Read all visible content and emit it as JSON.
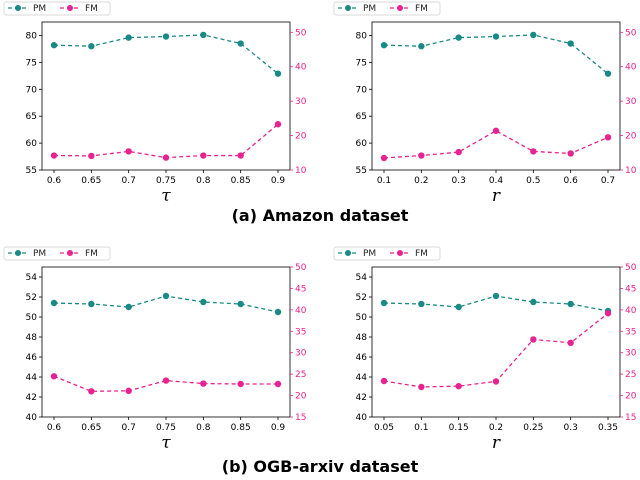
{
  "colors": {
    "pm": "#1a8a85",
    "fm": "#e8238f",
    "axis": "#000000"
  },
  "captions": [
    "(a) Amazon dataset",
    "(b) OGB-arxiv dataset"
  ],
  "chart_data": [
    {
      "type": "line",
      "xlabel": "τ",
      "categories": [
        "0.6",
        "0.65",
        "0.7",
        "0.75",
        "0.8",
        "0.85",
        "0.9"
      ],
      "series": [
        {
          "name": "PM",
          "axis": "left",
          "values": [
            78.2,
            78.0,
            79.6,
            79.8,
            80.1,
            78.5,
            72.9
          ]
        },
        {
          "name": "FM",
          "axis": "right",
          "values": [
            14.2,
            14.1,
            15.4,
            13.6,
            14.2,
            14.2,
            23.3
          ]
        }
      ],
      "ylim_left": [
        55,
        82.5
      ],
      "yticks_left": [
        55,
        60,
        65,
        70,
        75,
        80
      ],
      "ylim_right": [
        10,
        53
      ],
      "yticks_right": [
        10,
        20,
        30,
        40,
        50
      ]
    },
    {
      "type": "line",
      "xlabel": "r",
      "categories": [
        "0.1",
        "0.2",
        "0.3",
        "0.4",
        "0.5",
        "0.6",
        "0.7"
      ],
      "series": [
        {
          "name": "PM",
          "axis": "left",
          "values": [
            78.2,
            78.0,
            79.6,
            79.8,
            80.1,
            78.5,
            72.9
          ]
        },
        {
          "name": "FM",
          "axis": "right",
          "values": [
            13.5,
            14.2,
            15.2,
            21.4,
            15.4,
            14.8,
            19.5
          ]
        }
      ],
      "ylim_left": [
        55,
        82.5
      ],
      "yticks_left": [
        55,
        60,
        65,
        70,
        75,
        80
      ],
      "ylim_right": [
        10,
        53
      ],
      "yticks_right": [
        10,
        20,
        30,
        40,
        50
      ]
    },
    {
      "type": "line",
      "xlabel": "τ",
      "categories": [
        "0.6",
        "0.65",
        "0.7",
        "0.75",
        "0.8",
        "0.85",
        "0.9"
      ],
      "series": [
        {
          "name": "PM",
          "axis": "left",
          "values": [
            51.4,
            51.3,
            51.0,
            52.1,
            51.5,
            51.3,
            50.5
          ]
        },
        {
          "name": "FM",
          "axis": "right",
          "values": [
            24.5,
            21.0,
            21.1,
            23.5,
            22.8,
            22.7,
            22.7
          ]
        }
      ],
      "ylim_left": [
        40,
        55
      ],
      "yticks_left": [
        40,
        42,
        44,
        46,
        48,
        50,
        52,
        54
      ],
      "ylim_right": [
        15,
        50
      ],
      "yticks_right": [
        15,
        20,
        25,
        30,
        35,
        40,
        45,
        50
      ]
    },
    {
      "type": "line",
      "xlabel": "r",
      "categories": [
        "0.05",
        "0.1",
        "0.15",
        "0.2",
        "0.25",
        "0.3",
        "0.35"
      ],
      "series": [
        {
          "name": "PM",
          "axis": "left",
          "values": [
            51.4,
            51.3,
            51.0,
            52.1,
            51.5,
            51.3,
            50.6
          ]
        },
        {
          "name": "FM",
          "axis": "right",
          "values": [
            23.4,
            22.0,
            22.2,
            23.3,
            33.1,
            32.3,
            39.2
          ]
        }
      ],
      "ylim_left": [
        40,
        55
      ],
      "yticks_left": [
        40,
        42,
        44,
        46,
        48,
        50,
        52,
        54
      ],
      "ylim_right": [
        15,
        50
      ],
      "yticks_right": [
        15,
        20,
        25,
        30,
        35,
        40,
        45,
        50
      ]
    }
  ]
}
